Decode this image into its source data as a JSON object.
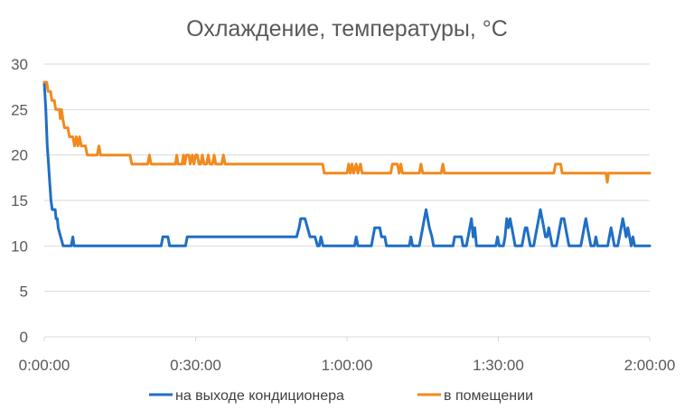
{
  "chart_data": {
    "type": "line",
    "title": "Охлаждение, температуры, °C",
    "xlabel": "",
    "ylabel": "",
    "x_unit": "h:mm:ss",
    "xlim": [
      "0:00:00",
      "2:00:00"
    ],
    "ylim": [
      0,
      30
    ],
    "x_ticks": [
      "0:00:00",
      "0:30:00",
      "1:00:00",
      "1:30:00",
      "2:00:00"
    ],
    "y_ticks": [
      0,
      5,
      10,
      15,
      20,
      25,
      30
    ],
    "grid": "horizontal",
    "legend": "bottom",
    "series": [
      {
        "name": "на выходе кондиционера",
        "color": "#1f6fc5",
        "points": [
          [
            "0:00:00",
            28
          ],
          [
            "0:00:18",
            25
          ],
          [
            "0:00:35",
            21
          ],
          [
            "0:00:50",
            19
          ],
          [
            "0:01:05",
            17
          ],
          [
            "0:01:20",
            15
          ],
          [
            "0:01:35",
            14
          ],
          [
            "0:02:10",
            14
          ],
          [
            "0:02:20",
            13
          ],
          [
            "0:02:35",
            13
          ],
          [
            "0:02:45",
            12
          ],
          [
            "0:03:15",
            11
          ],
          [
            "0:03:45",
            10
          ],
          [
            "0:05:20",
            10
          ],
          [
            "0:05:40",
            11
          ],
          [
            "0:05:55",
            10
          ],
          [
            "0:23:10",
            10
          ],
          [
            "0:23:30",
            11
          ],
          [
            "0:24:30",
            11
          ],
          [
            "0:24:50",
            10
          ],
          [
            "0:28:00",
            10
          ],
          [
            "0:28:20",
            11
          ],
          [
            "0:50:00",
            11
          ],
          [
            "0:50:30",
            12
          ],
          [
            "0:50:50",
            13
          ],
          [
            "0:51:40",
            13
          ],
          [
            "0:52:10",
            12
          ],
          [
            "0:52:40",
            11
          ],
          [
            "0:53:40",
            11
          ],
          [
            "0:54:10",
            10
          ],
          [
            "0:54:30",
            10
          ],
          [
            "0:54:50",
            11
          ],
          [
            "0:55:15",
            10
          ],
          [
            "1:01:30",
            10
          ],
          [
            "1:01:50",
            11
          ],
          [
            "1:02:10",
            10
          ],
          [
            "1:04:50",
            10
          ],
          [
            "1:05:10",
            11
          ],
          [
            "1:05:30",
            12
          ],
          [
            "1:06:30",
            12
          ],
          [
            "1:06:50",
            11
          ],
          [
            "1:07:30",
            11
          ],
          [
            "1:07:50",
            10
          ],
          [
            "1:12:20",
            10
          ],
          [
            "1:12:40",
            11
          ],
          [
            "1:13:00",
            10
          ],
          [
            "1:14:20",
            10
          ],
          [
            "1:14:40",
            11
          ],
          [
            "1:15:00",
            12
          ],
          [
            "1:15:20",
            13
          ],
          [
            "1:15:40",
            14
          ],
          [
            "1:16:00",
            13
          ],
          [
            "1:16:20",
            12
          ],
          [
            "1:16:50",
            11
          ],
          [
            "1:17:10",
            10
          ],
          [
            "1:21:00",
            10
          ],
          [
            "1:21:20",
            11
          ],
          [
            "1:22:40",
            11
          ],
          [
            "1:23:00",
            10
          ],
          [
            "1:23:40",
            10
          ],
          [
            "1:24:00",
            11
          ],
          [
            "1:24:20",
            12
          ],
          [
            "1:24:40",
            13
          ],
          [
            "1:25:00",
            11
          ],
          [
            "1:25:20",
            12
          ],
          [
            "1:25:40",
            10
          ],
          [
            "1:29:30",
            10
          ],
          [
            "1:29:50",
            11
          ],
          [
            "1:30:10",
            10
          ],
          [
            "1:31:00",
            10
          ],
          [
            "1:31:20",
            11
          ],
          [
            "1:31:40",
            13
          ],
          [
            "1:32:00",
            12
          ],
          [
            "1:32:20",
            13
          ],
          [
            "1:32:40",
            12
          ],
          [
            "1:33:00",
            11
          ],
          [
            "1:33:20",
            10
          ],
          [
            "1:34:40",
            10
          ],
          [
            "1:35:00",
            11
          ],
          [
            "1:35:20",
            12
          ],
          [
            "1:35:40",
            12
          ],
          [
            "1:36:00",
            11
          ],
          [
            "1:36:20",
            10
          ],
          [
            "1:37:00",
            10
          ],
          [
            "1:37:20",
            11
          ],
          [
            "1:37:40",
            12
          ],
          [
            "1:38:00",
            13
          ],
          [
            "1:38:20",
            14
          ],
          [
            "1:38:40",
            13
          ],
          [
            "1:39:00",
            12
          ],
          [
            "1:39:20",
            11
          ],
          [
            "1:39:40",
            11
          ],
          [
            "1:40:00",
            12
          ],
          [
            "1:40:20",
            11
          ],
          [
            "1:40:40",
            10
          ],
          [
            "1:41:30",
            10
          ],
          [
            "1:41:50",
            11
          ],
          [
            "1:42:10",
            12
          ],
          [
            "1:42:30",
            13
          ],
          [
            "1:43:00",
            13
          ],
          [
            "1:43:20",
            12
          ],
          [
            "1:43:40",
            11
          ],
          [
            "1:44:00",
            10
          ],
          [
            "1:46:20",
            10
          ],
          [
            "1:46:40",
            11
          ],
          [
            "1:47:00",
            12
          ],
          [
            "1:47:20",
            13
          ],
          [
            "1:47:40",
            12
          ],
          [
            "1:48:00",
            11
          ],
          [
            "1:48:20",
            10
          ],
          [
            "1:49:00",
            10
          ],
          [
            "1:49:20",
            11
          ],
          [
            "1:49:40",
            10
          ],
          [
            "1:51:40",
            10
          ],
          [
            "1:52:00",
            11
          ],
          [
            "1:52:20",
            12
          ],
          [
            "1:52:40",
            11
          ],
          [
            "1:53:00",
            10
          ],
          [
            "1:53:40",
            10
          ],
          [
            "1:54:00",
            11
          ],
          [
            "1:54:20",
            12
          ],
          [
            "1:54:40",
            13
          ],
          [
            "1:55:00",
            12
          ],
          [
            "1:55:20",
            11
          ],
          [
            "1:55:40",
            12
          ],
          [
            "1:56:00",
            11
          ],
          [
            "1:56:20",
            10
          ],
          [
            "1:56:40",
            11
          ],
          [
            "1:57:00",
            10
          ],
          [
            "2:00:00",
            10
          ]
        ]
      },
      {
        "name": "в помещении",
        "color": "#f28a1e",
        "points": [
          [
            "0:00:00",
            28
          ],
          [
            "0:00:30",
            28
          ],
          [
            "0:00:45",
            27
          ],
          [
            "0:01:15",
            27
          ],
          [
            "0:01:30",
            26
          ],
          [
            "0:02:00",
            26
          ],
          [
            "0:02:15",
            25
          ],
          [
            "0:03:00",
            25
          ],
          [
            "0:03:10",
            24
          ],
          [
            "0:03:25",
            25
          ],
          [
            "0:03:40",
            24
          ],
          [
            "0:04:00",
            23
          ],
          [
            "0:04:40",
            23
          ],
          [
            "0:05:00",
            22
          ],
          [
            "0:05:40",
            22
          ],
          [
            "0:06:00",
            21
          ],
          [
            "0:06:20",
            22
          ],
          [
            "0:06:40",
            21
          ],
          [
            "0:07:00",
            22
          ],
          [
            "0:07:20",
            21
          ],
          [
            "0:08:10",
            21
          ],
          [
            "0:08:30",
            20
          ],
          [
            "0:10:30",
            20
          ],
          [
            "0:10:50",
            21
          ],
          [
            "0:11:10",
            20
          ],
          [
            "0:17:00",
            20
          ],
          [
            "0:17:20",
            19
          ],
          [
            "0:20:30",
            19
          ],
          [
            "0:20:50",
            20
          ],
          [
            "0:21:10",
            19
          ],
          [
            "0:26:00",
            19
          ],
          [
            "0:26:15",
            20
          ],
          [
            "0:26:30",
            19
          ],
          [
            "0:27:20",
            19
          ],
          [
            "0:27:35",
            20
          ],
          [
            "0:27:50",
            19
          ],
          [
            "0:28:10",
            20
          ],
          [
            "0:28:40",
            20
          ],
          [
            "0:28:55",
            19
          ],
          [
            "0:29:20",
            20
          ],
          [
            "0:29:40",
            19
          ],
          [
            "0:30:00",
            20
          ],
          [
            "0:30:20",
            20
          ],
          [
            "0:30:40",
            19
          ],
          [
            "0:31:00",
            19
          ],
          [
            "0:31:20",
            20
          ],
          [
            "0:31:40",
            19
          ],
          [
            "0:32:10",
            19
          ],
          [
            "0:32:30",
            20
          ],
          [
            "0:32:50",
            19
          ],
          [
            "0:33:20",
            19
          ],
          [
            "0:33:40",
            20
          ],
          [
            "0:34:00",
            19
          ],
          [
            "0:35:10",
            19
          ],
          [
            "0:35:30",
            20
          ],
          [
            "0:35:50",
            19
          ],
          [
            "0:55:10",
            19
          ],
          [
            "0:55:30",
            18
          ],
          [
            "1:00:00",
            18
          ],
          [
            "1:00:20",
            19
          ],
          [
            "1:00:40",
            18
          ],
          [
            "1:01:00",
            19
          ],
          [
            "1:01:20",
            18
          ],
          [
            "1:01:50",
            19
          ],
          [
            "1:02:10",
            18
          ],
          [
            "1:02:40",
            19
          ],
          [
            "1:03:00",
            18
          ],
          [
            "1:08:40",
            18
          ],
          [
            "1:09:00",
            19
          ],
          [
            "1:10:00",
            19
          ],
          [
            "1:10:20",
            18
          ],
          [
            "1:10:40",
            19
          ],
          [
            "1:11:00",
            18
          ],
          [
            "1:14:20",
            18
          ],
          [
            "1:14:40",
            19
          ],
          [
            "1:15:00",
            18
          ],
          [
            "1:18:40",
            18
          ],
          [
            "1:19:00",
            19
          ],
          [
            "1:19:20",
            18
          ],
          [
            "1:41:00",
            18
          ],
          [
            "1:41:20",
            19
          ],
          [
            "1:42:20",
            19
          ],
          [
            "1:42:40",
            18
          ],
          [
            "1:51:20",
            18
          ],
          [
            "1:51:35",
            17
          ],
          [
            "1:51:50",
            18
          ],
          [
            "2:00:00",
            18
          ]
        ]
      }
    ]
  }
}
